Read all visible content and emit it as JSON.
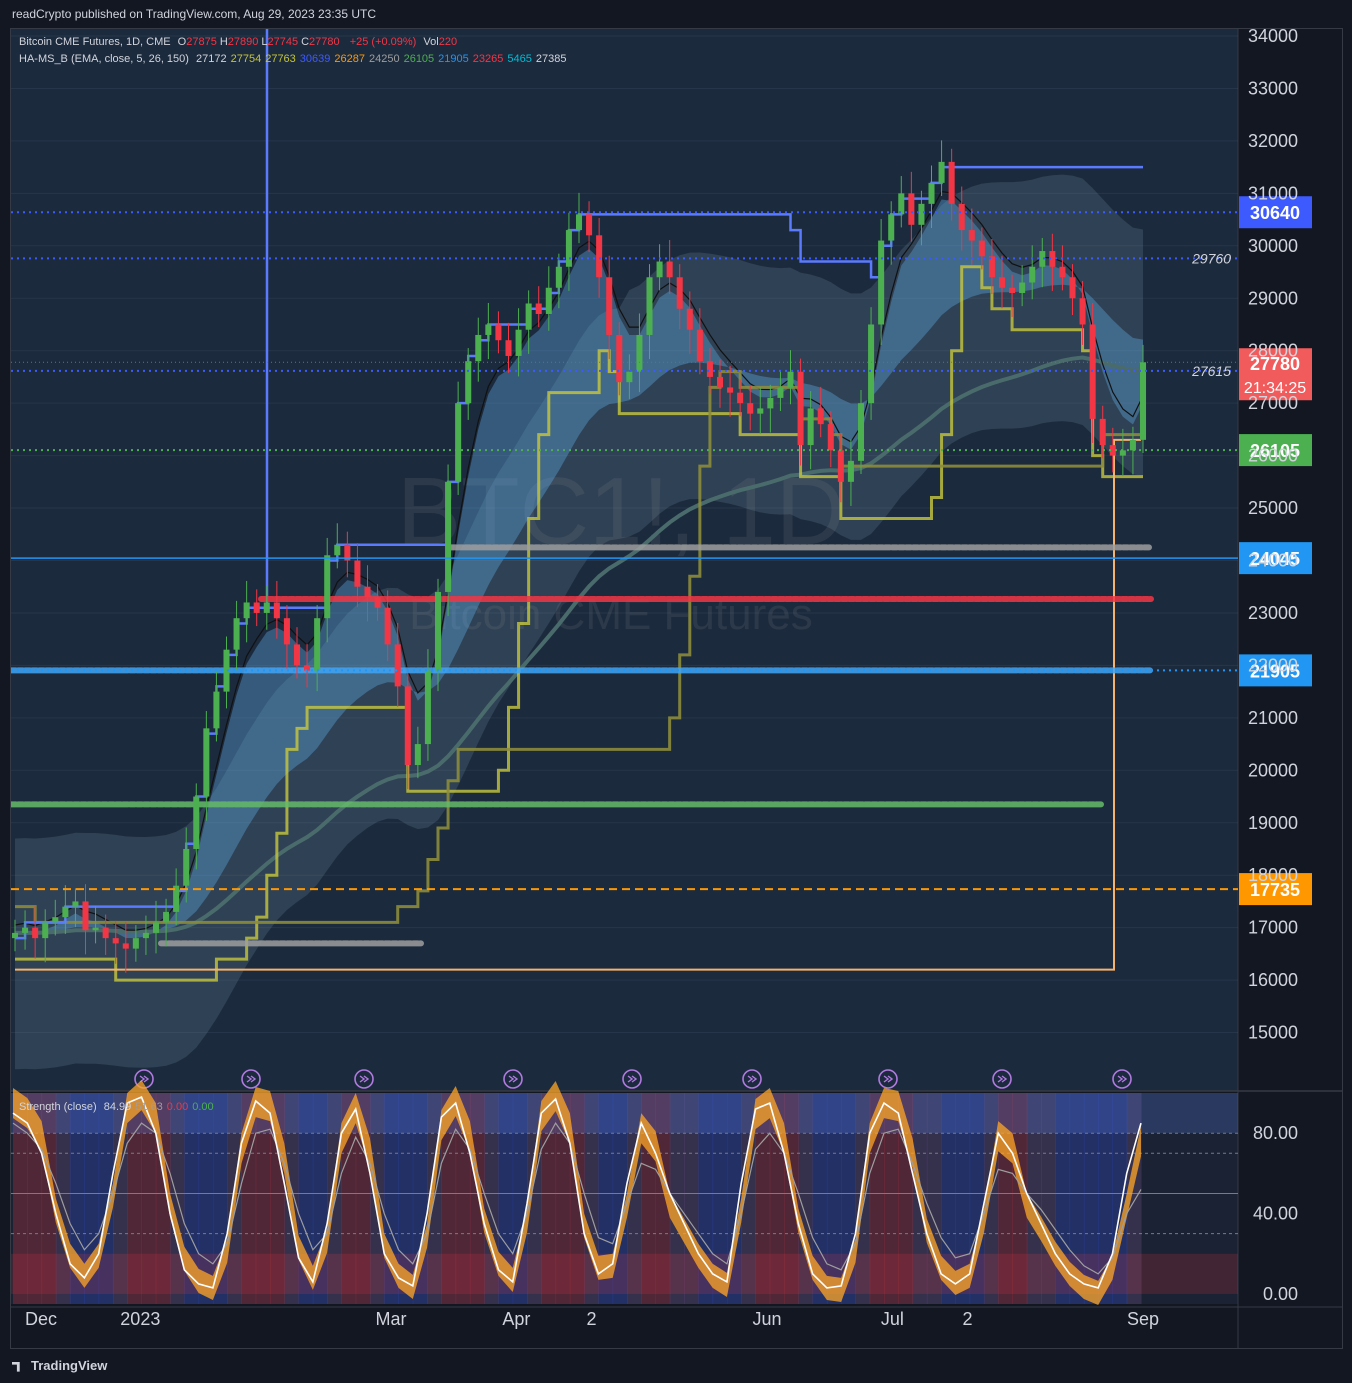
{
  "publisher": "readCrypto published on TradingView.com, Aug 29, 2023 23:35 UTC",
  "footer": "TradingView",
  "legend": {
    "symbol": "Bitcoin CME Futures, 1D, CME",
    "ohlc": [
      {
        "k": "O",
        "v": "27875"
      },
      {
        "k": "H",
        "v": "27890"
      },
      {
        "k": "L",
        "v": "27745"
      },
      {
        "k": "C",
        "v": "27780"
      }
    ],
    "change": "+25 (+0.09%)",
    "vol_label": "Vol",
    "vol": "220",
    "indicator": "HA-MS_B (EMA, close, 5, 26, 150)",
    "indicator_values": [
      {
        "v": "27172",
        "color": "#d1d4dc"
      },
      {
        "v": "27754",
        "color": "#c4c43a"
      },
      {
        "v": "27763",
        "color": "#c4c43a"
      },
      {
        "v": "30639",
        "color": "#3d5afe"
      },
      {
        "v": "26287",
        "color": "#ff9800"
      },
      {
        "v": "24250",
        "color": "#9e9e9e"
      },
      {
        "v": "26105",
        "color": "#4caf50"
      },
      {
        "v": "21905",
        "color": "#2196f3"
      },
      {
        "v": "23265",
        "color": "#f23645"
      },
      {
        "v": "5465",
        "color": "#00bcd4"
      },
      {
        "v": "27385",
        "color": "#d1d4dc"
      }
    ]
  },
  "watermark": {
    "symbol": "BTC1!, 1D",
    "name": "Bitcoin CME Futures"
  },
  "colors": {
    "bg": "#131722",
    "panel": "#1e2a3a",
    "up": "#4caf50",
    "down": "#f23645",
    "ema150": "#4a6b6b",
    "blue_line": "#3d5afe",
    "yellow": "#c8c83c",
    "olive": "#8c8c3c",
    "orange": "#ffa726",
    "teal": "#26c6da"
  },
  "chart_data": [
    {
      "type": "candlestick",
      "title": "Bitcoin CME Futures, 1D, CME",
      "ylim": [
        14000,
        34000
      ],
      "y_ticks": [
        15000,
        16000,
        17000,
        18000,
        19000,
        20000,
        21000,
        22000,
        23000,
        24000,
        25000,
        26000,
        27000,
        28000,
        29000,
        30000,
        31000,
        32000,
        33000,
        34000
      ],
      "x_labels": [
        "Dec",
        "2023",
        "Mar",
        "Apr",
        "2",
        "Jun",
        "Jul",
        "2",
        "Sep"
      ],
      "x_label_months": [
        0,
        1,
        3,
        4,
        4.6,
        6,
        7,
        7.6,
        9
      ],
      "close_series": [
        16900,
        17000,
        16800,
        17100,
        17200,
        17400,
        17500,
        16950,
        17000,
        16800,
        16700,
        16600,
        16800,
        16900,
        17100,
        17300,
        17800,
        18500,
        19500,
        20800,
        21500,
        22300,
        22900,
        23200,
        23000,
        23200,
        22900,
        22400,
        22000,
        21900,
        22900,
        24100,
        24300,
        24000,
        23500,
        23300,
        23100,
        22400,
        21600,
        20100,
        20500,
        21900,
        23400,
        25500,
        27000,
        27800,
        28300,
        28500,
        28200,
        27900,
        28400,
        28900,
        28700,
        29200,
        29600,
        30300,
        30600,
        30200,
        29400,
        28300,
        27400,
        27600,
        28300,
        29400,
        29700,
        29400,
        28800,
        28400,
        27800,
        27500,
        27300,
        27200,
        27000,
        26800,
        26900,
        27100,
        27300,
        27600,
        26200,
        26900,
        26600,
        26100,
        25500,
        25900,
        27000,
        28500,
        30100,
        30600,
        31000,
        30400,
        30800,
        31200,
        31600,
        30800,
        30300,
        30100,
        29800,
        29400,
        29200,
        29100,
        29300,
        29600,
        29900,
        29600,
        29400,
        29000,
        28500,
        26700,
        26200,
        26000,
        26100,
        26300,
        27780
      ],
      "price_levels": [
        {
          "value": 30640,
          "label": "30640",
          "style": "dotted",
          "color": "#3d5afe"
        },
        {
          "value": 29760,
          "label": "29760",
          "style": "dotted",
          "color": "#3d5afe"
        },
        {
          "value": 27615,
          "label": "27615",
          "style": "dotted",
          "color": "#3d5afe"
        },
        {
          "value": 26105,
          "label": "26105",
          "style": "dotted",
          "color": "#4caf50"
        },
        {
          "value": 24045,
          "label": "24045",
          "style": "solid",
          "color": "#2196f3"
        },
        {
          "value": 21905,
          "label": "21905",
          "style": "dotted",
          "color": "#2196f3"
        },
        {
          "value": 17735,
          "label": "17735",
          "style": "dashed",
          "color": "#ff9800"
        }
      ],
      "last_price": {
        "value": 27780,
        "label": "27780",
        "countdown": "21:34:25"
      }
    },
    {
      "type": "line",
      "title": "Strength (close)",
      "legend_values": [
        {
          "v": "84.99",
          "color": "#d1d4dc"
        },
        {
          "v": "51.63",
          "color": "#9e9e9e"
        },
        {
          "v": "0.00",
          "color": "#f23645"
        },
        {
          "v": "0.00",
          "color": "#4caf50"
        }
      ],
      "ylim": [
        -5,
        100
      ],
      "y_ticks": [
        0,
        40,
        80
      ],
      "y_tick_labels": [
        "0.00",
        "40.00",
        "80.00"
      ],
      "reference_levels": [
        80,
        70,
        50,
        30
      ],
      "fast_series": [
        90,
        85,
        70,
        40,
        15,
        8,
        20,
        60,
        95,
        98,
        80,
        40,
        12,
        5,
        3,
        30,
        75,
        96,
        90,
        55,
        18,
        6,
        35,
        80,
        92,
        60,
        20,
        8,
        4,
        40,
        88,
        95,
        70,
        35,
        12,
        6,
        45,
        90,
        97,
        75,
        30,
        10,
        15,
        55,
        85,
        70,
        50,
        35,
        20,
        10,
        6,
        55,
        92,
        95,
        70,
        35,
        10,
        3,
        4,
        30,
        80,
        95,
        90,
        60,
        30,
        10,
        5,
        10,
        45,
        80,
        70,
        50,
        35,
        20,
        10,
        5,
        3,
        20,
        60,
        85
      ],
      "slow_series": [
        85,
        80,
        72,
        55,
        35,
        22,
        30,
        50,
        75,
        85,
        80,
        60,
        35,
        20,
        15,
        25,
        55,
        80,
        82,
        65,
        40,
        22,
        30,
        60,
        78,
        65,
        40,
        22,
        15,
        30,
        65,
        82,
        72,
        50,
        30,
        20,
        40,
        72,
        85,
        75,
        50,
        28,
        25,
        45,
        65,
        62,
        50,
        40,
        30,
        20,
        15,
        40,
        72,
        80,
        70,
        50,
        28,
        15,
        12,
        25,
        60,
        80,
        82,
        65,
        45,
        28,
        18,
        20,
        40,
        62,
        60,
        50,
        42,
        32,
        22,
        14,
        10,
        18,
        40,
        52
      ]
    }
  ]
}
